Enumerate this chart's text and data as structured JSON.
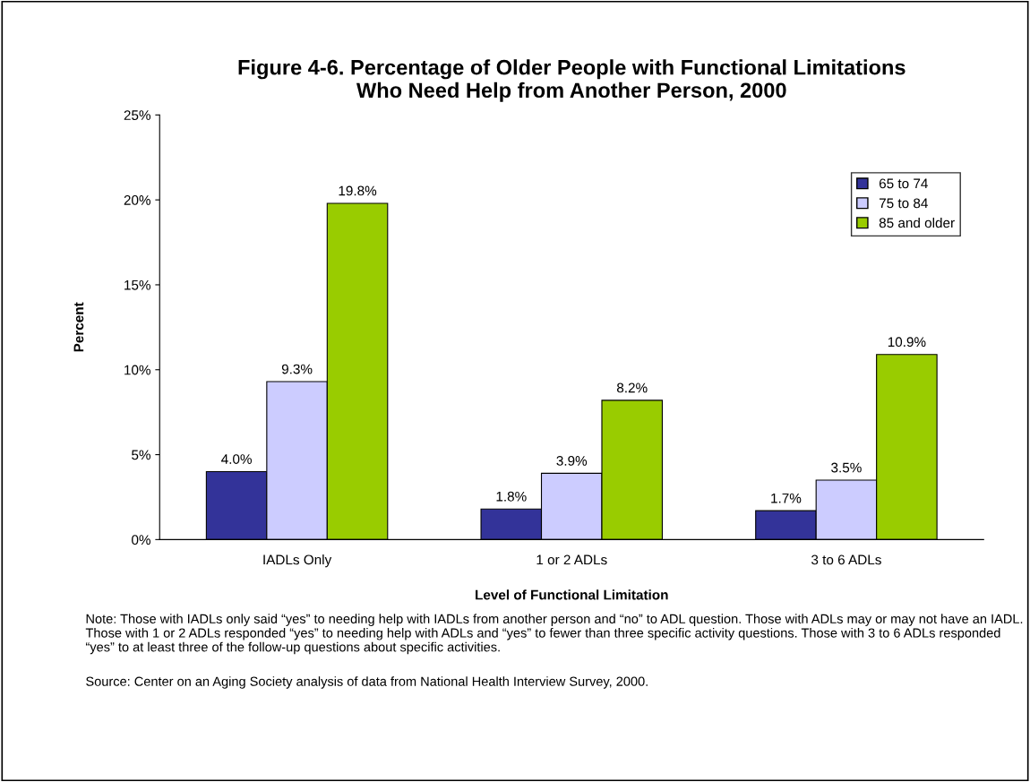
{
  "chart_data": {
    "type": "bar",
    "title": "Figure 4-6. Percentage of Older People with Functional Limitations\nWho Need Help from Another Person, 2000",
    "xlabel": "Level of Functional Limitation",
    "ylabel": "Percent",
    "categories": [
      "IADLs Only",
      "1 or 2 ADLs",
      "3 to 6 ADLs"
    ],
    "series": [
      {
        "name": "65 to 74",
        "color": "#333399",
        "values": [
          4.0,
          1.8,
          1.7
        ],
        "value_labels": [
          "4.0%",
          "1.8%",
          "1.7%"
        ]
      },
      {
        "name": "75 to 84",
        "color": "#ccccff",
        "values": [
          9.3,
          3.9,
          3.5
        ],
        "value_labels": [
          "9.3%",
          "3.9%",
          "3.5%"
        ]
      },
      {
        "name": "85 and older",
        "color": "#99cc00",
        "values": [
          19.8,
          8.2,
          10.9
        ],
        "value_labels": [
          "19.8%",
          "8.2%",
          "10.9%"
        ]
      }
    ],
    "ylim": [
      0,
      25
    ],
    "yticks": [
      {
        "value": 0,
        "label": "0%"
      },
      {
        "value": 5,
        "label": "5%"
      },
      {
        "value": 10,
        "label": "10%"
      },
      {
        "value": 15,
        "label": "15%"
      },
      {
        "value": 20,
        "label": "20%"
      },
      {
        "value": 25,
        "label": "25%"
      }
    ],
    "grid": false,
    "legend": "top right",
    "annotations": [
      "Note: Those with IADLs only said “yes” to needing help with IADLs from another person and “no” to ADL question. Those with ADLs may or may not have an IADL. Those with 1 or 2 ADLs responded “yes” to needing help with ADLs and “yes” to fewer than three specific activity questions. Those with 3 to 6 ADLs responded “yes” to at least three of the follow-up questions about specific activities.",
      "Source: Center on an Aging Society analysis of data from National Health Interview Survey, 2000."
    ]
  }
}
